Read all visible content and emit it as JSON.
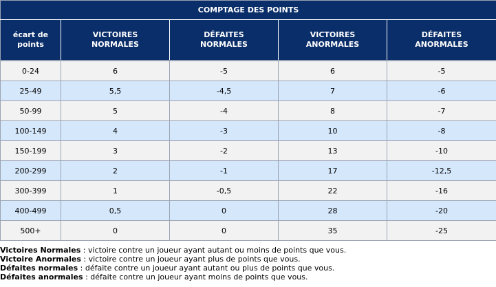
{
  "table": {
    "title": "COMPTAGE DES POINTS",
    "headers": [
      [
        "écart de",
        "points"
      ],
      [
        "VICTOIRES",
        "NORMALES"
      ],
      [
        "DÉFAITES",
        "NORMALES"
      ],
      [
        "VICTOIRES",
        "ANORMALES"
      ],
      [
        "DÉFAITES",
        "ANORMALES"
      ]
    ],
    "rows": [
      [
        "0-24",
        "6",
        "-5",
        "6",
        "-5"
      ],
      [
        "25-49",
        "5,5",
        "-4,5",
        "7",
        "-6"
      ],
      [
        "50-99",
        "5",
        "-4",
        "8",
        "-7"
      ],
      [
        "100-149",
        "4",
        "-3",
        "10",
        "-8"
      ],
      [
        "150-199",
        "3",
        "-2",
        "13",
        "-10"
      ],
      [
        "200-299",
        "2",
        "-1",
        "17",
        "-12,5"
      ],
      [
        "300-399",
        "1",
        "-0,5",
        "22",
        "-16"
      ],
      [
        "400-499",
        "0,5",
        "0",
        "28",
        "-20"
      ],
      [
        "500+",
        "0",
        "0",
        "35",
        "-25"
      ]
    ]
  },
  "legend": [
    {
      "term": "Victoires Normales",
      "sep": " : ",
      "desc": "victoire contre un joueur ayant autant ou moins de points que vous."
    },
    {
      "term": "Victoire Anormales",
      "sep": " : ",
      "desc": "victoire contre un joueur ayant plus de points que vous."
    },
    {
      "term": "Défaites normales",
      "sep": " : ",
      "desc": "défaite contre un joueur ayant autant ou plus de points que vous."
    },
    {
      "term": "Défaites anormales",
      "sep": " : ",
      "desc": "défaite contre un joueur ayant moins de points que vous."
    }
  ],
  "colors": {
    "header_bg": "#0a2e69",
    "row_odd": "#f2f2f2",
    "row_even": "#d5e7fb",
    "grid": "#9aa3b3"
  }
}
